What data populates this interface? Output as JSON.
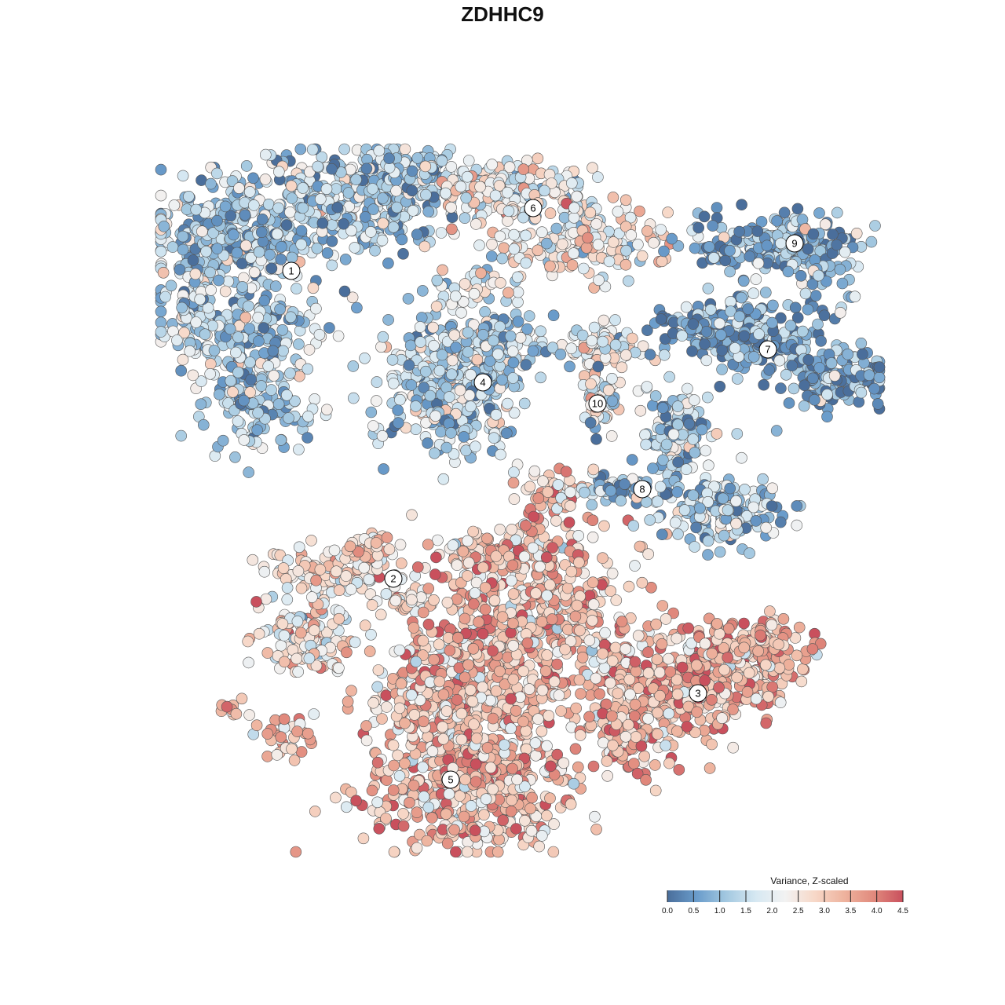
{
  "chart_data": {
    "type": "scatter",
    "title": "ZDHHC9",
    "xlabel": "",
    "ylabel": "",
    "grid": false,
    "legend": {
      "title": "Variance, Z-scaled",
      "placement": "bottom-right",
      "ticks": [
        "0.0",
        "0.5",
        "1.0",
        "1.5",
        "2.0",
        "2.5",
        "3.0",
        "3.5",
        "4.0",
        "4.5"
      ],
      "range": [
        0,
        4.5
      ],
      "colors": [
        "#4a6e9b",
        "#6a9ccb",
        "#a3c8e0",
        "#d6e8f2",
        "#f2f2f2",
        "#f7d8c8",
        "#eeb39e",
        "#e18a7d",
        "#c9505d"
      ]
    },
    "clusters": [
      {
        "label": "1",
        "value": 1.2
      },
      {
        "label": "2",
        "value": 2.6
      },
      {
        "label": "3",
        "value": 3.3
      },
      {
        "label": "4",
        "value": 1.4
      },
      {
        "label": "5",
        "value": 3.1
      },
      {
        "label": "6",
        "value": 2.3
      },
      {
        "label": "7",
        "value": 0.6
      },
      {
        "label": "8",
        "value": 1.2
      },
      {
        "label": "9",
        "value": 0.9
      },
      {
        "label": "10",
        "value": 2.0
      }
    ]
  }
}
